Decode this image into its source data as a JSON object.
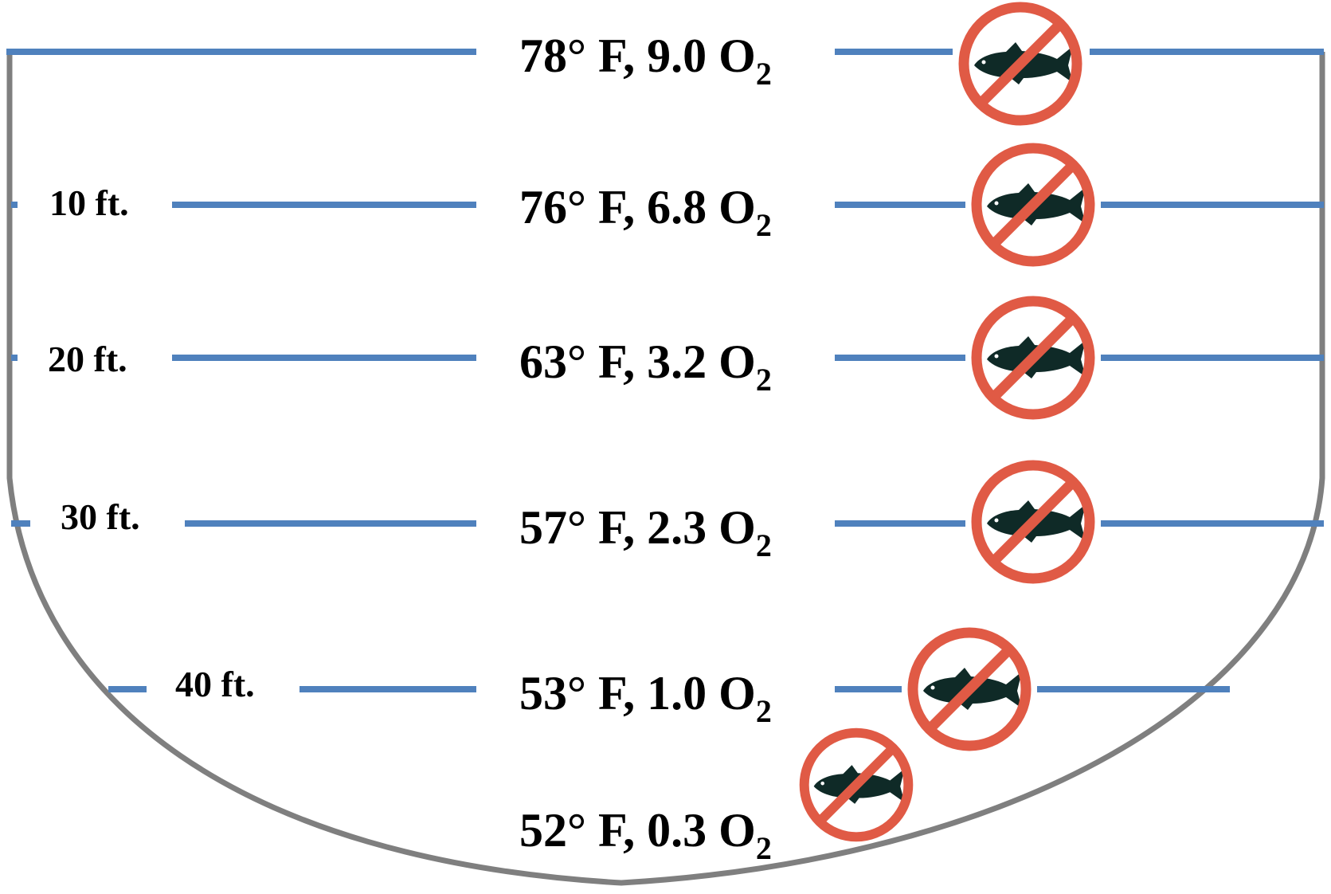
{
  "colors": {
    "basin_outline": "#7f7f7f",
    "depth_line": "#4f81bd",
    "prohibition_ring": "#e05a45",
    "fish": "#0f2a27",
    "text": "#000000"
  },
  "icons": {
    "no_fish": "no-fish-prohibition-icon"
  },
  "levels": [
    {
      "depth_label": "",
      "temp_label": "78° F, 9.0 O",
      "o2_sub": "2"
    },
    {
      "depth_label": "10 ft.",
      "temp_label": "76° F, 6.8 O",
      "o2_sub": "2"
    },
    {
      "depth_label": "20 ft.",
      "temp_label": "63° F, 3.2 O",
      "o2_sub": "2"
    },
    {
      "depth_label": "30 ft.",
      "temp_label": "57° F, 2.3 O",
      "o2_sub": "2"
    },
    {
      "depth_label": "40 ft.",
      "temp_label": "53° F, 1.0 O",
      "o2_sub": "2"
    },
    {
      "depth_label": "",
      "temp_label": "52° F, 0.3 O",
      "o2_sub": "2"
    }
  ]
}
